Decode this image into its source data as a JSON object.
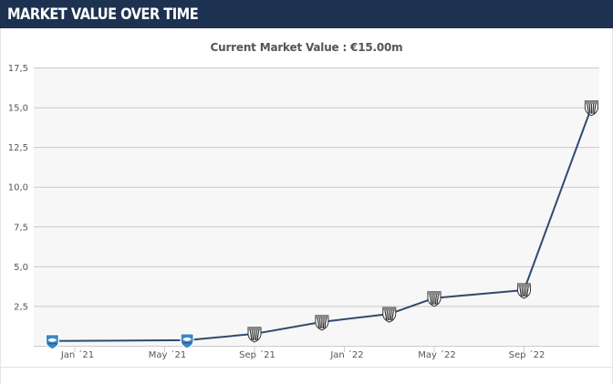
{
  "header": {
    "title": "MARKET VALUE OVER TIME"
  },
  "chart_data": {
    "type": "line",
    "title": "Current Market Value : €15.00m",
    "xlabel": "",
    "ylabel": "",
    "x": [
      "2020-12",
      "2021-06",
      "2021-09",
      "2021-12",
      "2022-03",
      "2022-05",
      "2022-09",
      "2022-12"
    ],
    "series": [
      {
        "values": [
          0.3,
          0.35,
          0.75,
          1.5,
          2.0,
          3.0,
          3.5,
          15.0
        ]
      }
    ],
    "club_badges": [
      "blue-club-badge",
      "blue-club-badge",
      "striped-club-badge",
      "striped-club-badge",
      "striped-club-badge",
      "striped-club-badge",
      "striped-club-badge",
      "striped-club-badge"
    ],
    "ylim": [
      0,
      17.5
    ],
    "yticks": [
      "2,5",
      "5,0",
      "7,5",
      "10,0",
      "12,5",
      "15,0",
      "17,5"
    ],
    "xticks": [
      "Jan ´21",
      "May ´21",
      "Sep ´21",
      "Jan ´22",
      "May ´22",
      "Sep ´22"
    ],
    "grid": true,
    "line_color": "#2e4a6d",
    "plot_background": "#f7f7f7"
  }
}
